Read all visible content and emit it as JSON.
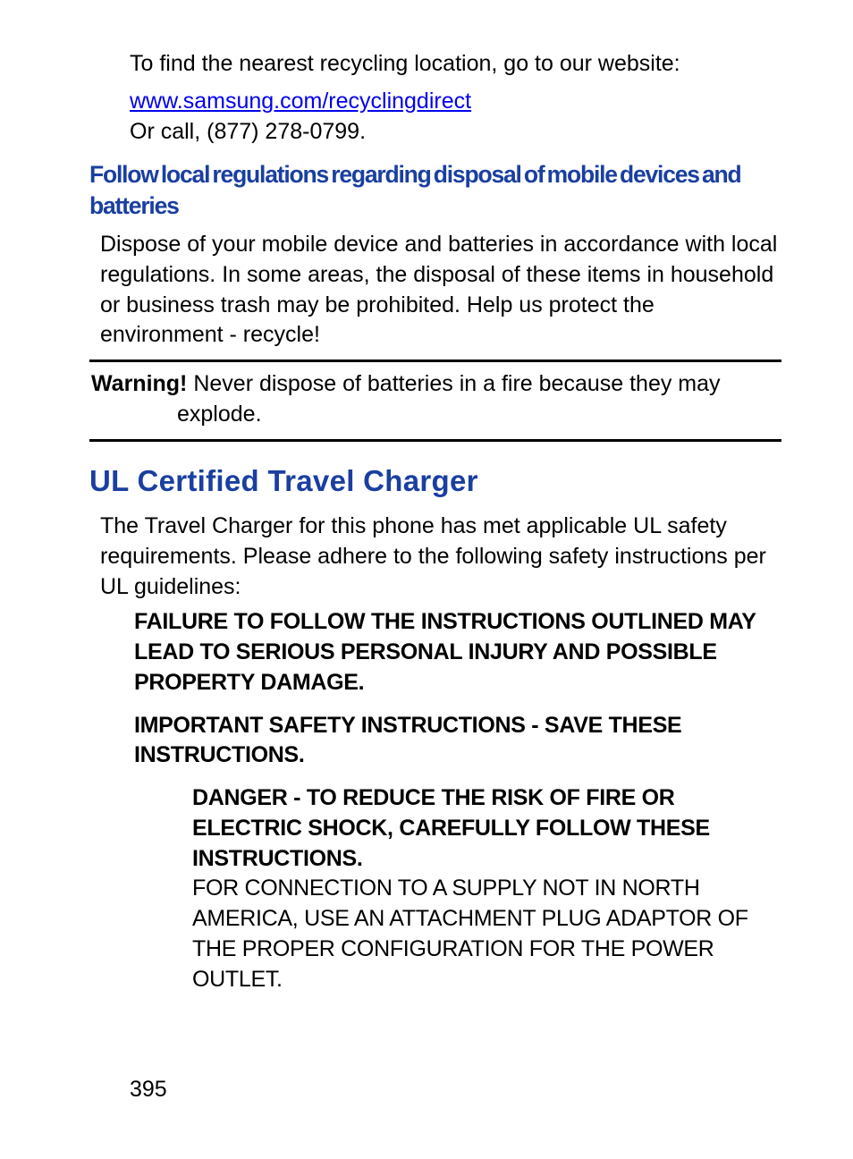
{
  "colors": {
    "heading_blue": "#1a3fa0",
    "link_blue": "#0000ee",
    "text": "#000000",
    "background": "#ffffff",
    "rule": "#000000"
  },
  "typography": {
    "body_fontsize_pt": 19,
    "heading2_fontsize_pt": 25,
    "font_family": "Arial / Helvetica (condensed for headings)"
  },
  "intro": {
    "line1": "To find the nearest recycling location, go to our website:",
    "link": "www.samsung.com/recyclingdirect",
    "line2": "Or call, (877) 278-0799."
  },
  "section_disposal": {
    "heading": "Follow local regulations regarding disposal of mobile devices and batteries",
    "body": "Dispose of your mobile device and batteries in accordance with local regulations. In some areas, the disposal of these items in household or business trash may be prohibited. Help us protect the environment - recycle!"
  },
  "warning": {
    "label": "Warning!",
    "text_line1": " Never dispose of batteries in a fire because they may",
    "text_line2": "explode."
  },
  "section_ul": {
    "heading": "UL Certified Travel Charger",
    "body": "The Travel Charger for this phone has met applicable UL safety requirements. Please adhere to the following safety instructions per UL guidelines:",
    "bold1": "FAILURE TO FOLLOW THE INSTRUCTIONS OUTLINED MAY LEAD TO SERIOUS PERSONAL INJURY AND POSSIBLE PROPERTY DAMAGE.",
    "bold2": "IMPORTANT SAFETY INSTRUCTIONS - SAVE THESE INSTRUCTIONS.",
    "danger_bold": "DANGER - TO REDUCE THE RISK OF FIRE OR ELECTRIC SHOCK, CAREFULLY FOLLOW THESE INSTRUCTIONS.",
    "danger_body": "FOR CONNECTION TO A SUPPLY NOT IN NORTH AMERICA, USE AN ATTACHMENT PLUG ADAPTOR OF THE PROPER CONFIGURATION FOR THE POWER OUTLET."
  },
  "page_number": "395"
}
